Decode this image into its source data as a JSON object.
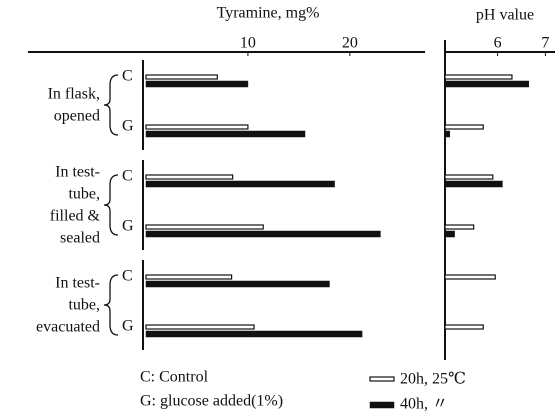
{
  "chart_data": [
    {
      "type": "bar",
      "orientation": "horizontal",
      "xlabel": "Tyramine, mg%",
      "groups": [
        [
          "In flask,",
          "opened"
        ],
        [
          "In test-",
          "tube,",
          "filled &",
          "sealed"
        ],
        [
          "In test-",
          "tube,",
          "evacuated"
        ]
      ],
      "categories": [
        "C",
        "G",
        "C",
        "G",
        "C",
        "G"
      ],
      "xlim": [
        0,
        26
      ],
      "xticks": [
        10,
        20
      ],
      "series": [
        {
          "name": "20h, 25℃",
          "color": "#ffffff",
          "values": [
            7,
            10,
            8.5,
            11.5,
            8.4,
            10.6
          ]
        },
        {
          "name": "40h, 〃",
          "color": "#111111",
          "values": [
            10,
            15.6,
            18.5,
            23,
            18,
            21.2
          ]
        }
      ]
    },
    {
      "type": "bar",
      "orientation": "horizontal",
      "xlabel": "pH value",
      "xlim": [
        4.9,
        7.2
      ],
      "xticks": [
        6,
        7
      ],
      "series": [
        {
          "color": "#ffffff",
          "values": [
            6.3,
            5.7,
            5.9,
            5.5,
            5.95,
            5.7
          ]
        },
        {
          "color": "#111111",
          "values": [
            6.65,
            5.0,
            6.1,
            5.1,
            null,
            null
          ]
        }
      ]
    }
  ],
  "notes": [
    "C: Control",
    "G: glucose added(1%)"
  ]
}
